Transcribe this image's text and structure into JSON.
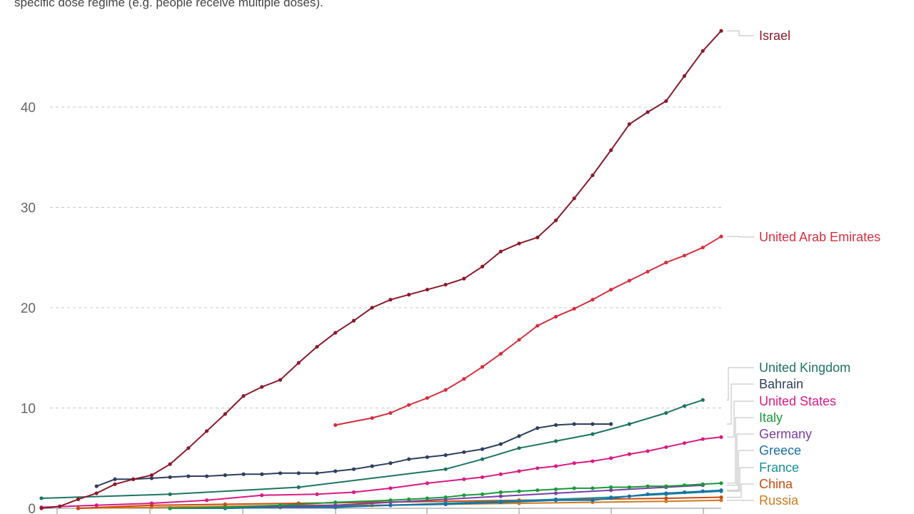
{
  "subtitle": "specific dose regime (e.g. people receive multiple doses).",
  "chart_data": {
    "type": "line",
    "title": "",
    "xlabel": "",
    "ylabel": "",
    "ylim": [
      0,
      48
    ],
    "yticks": [
      0,
      10,
      20,
      30,
      40
    ],
    "grid": true,
    "legend": "right",
    "x_range": [
      0,
      37
    ],
    "series": [
      {
        "name": "Israel",
        "color": "#8b1a2b",
        "x": [
          0,
          1,
          2,
          3,
          4,
          5,
          6,
          7,
          8,
          9,
          10,
          11,
          12,
          13,
          14,
          15,
          16,
          17,
          18,
          19,
          20,
          21,
          22,
          23,
          24,
          25,
          26,
          27,
          28,
          29,
          30,
          31,
          32,
          33,
          34,
          35,
          36,
          37
        ],
        "values": [
          0,
          0.2,
          0.9,
          1.5,
          2.4,
          2.9,
          3.3,
          4.4,
          6,
          7.7,
          9.4,
          11.2,
          12.1,
          12.8,
          14.5,
          16.1,
          17.5,
          18.7,
          20,
          20.8,
          21.3,
          21.8,
          22.3,
          22.9,
          24.1,
          25.6,
          26.4,
          27,
          28.7,
          30.9,
          33.2,
          35.7,
          38.3,
          39.5,
          40.6,
          43.1,
          45.6,
          47.6
        ]
      },
      {
        "name": "United Arab Emirates",
        "color": "#d6303f",
        "x": [
          16,
          18,
          19,
          20,
          21,
          22,
          23,
          24,
          25,
          26,
          27,
          28,
          29,
          30,
          31,
          32,
          33,
          34,
          35,
          36,
          37
        ],
        "values": [
          8.3,
          9,
          9.5,
          10.3,
          11,
          11.8,
          12.9,
          14.1,
          15.4,
          16.8,
          18.2,
          19.1,
          19.9,
          20.8,
          21.8,
          22.7,
          23.6,
          24.5,
          25.2,
          26,
          27.1
        ]
      },
      {
        "name": "United Kingdom",
        "color": "#1e7461",
        "x": [
          0,
          7,
          14,
          22,
          24,
          26,
          28,
          30,
          32,
          34,
          35,
          36
        ],
        "values": [
          1,
          1.4,
          2.1,
          3.9,
          4.9,
          6,
          6.7,
          7.4,
          8.4,
          9.5,
          10.2,
          10.8
        ]
      },
      {
        "name": "Bahrain",
        "color": "#2f3e5e",
        "x": [
          3,
          4,
          5,
          6,
          7,
          8,
          9,
          10,
          11,
          12,
          13,
          14,
          15,
          16,
          17,
          18,
          19,
          20,
          21,
          22,
          23,
          24,
          25,
          26,
          27,
          28,
          29,
          30,
          31
        ],
        "values": [
          2.2,
          2.9,
          2.9,
          3,
          3.1,
          3.2,
          3.2,
          3.3,
          3.4,
          3.4,
          3.5,
          3.5,
          3.5,
          3.7,
          3.9,
          4.2,
          4.5,
          4.9,
          5.1,
          5.3,
          5.6,
          5.9,
          6.4,
          7.2,
          8,
          8.3,
          8.4,
          8.4,
          8.4
        ]
      },
      {
        "name": "United States",
        "color": "#d91a84",
        "x": [
          0,
          3,
          6,
          9,
          12,
          15,
          17,
          19,
          21,
          23,
          24,
          25,
          26,
          27,
          28,
          29,
          30,
          31,
          32,
          33,
          34,
          35,
          36,
          37
        ],
        "values": [
          0.1,
          0.3,
          0.5,
          0.8,
          1.3,
          1.4,
          1.6,
          2,
          2.5,
          2.9,
          3.1,
          3.4,
          3.7,
          4,
          4.2,
          4.5,
          4.7,
          5,
          5.4,
          5.7,
          6.1,
          6.5,
          6.9,
          7.1
        ]
      },
      {
        "name": "Italy",
        "color": "#189a3b",
        "x": [
          7,
          10,
          13,
          16,
          19,
          20,
          21,
          22,
          23,
          24,
          25,
          26,
          27,
          28,
          29,
          30,
          31,
          32,
          33,
          34,
          35,
          36,
          37
        ],
        "values": [
          0,
          0.1,
          0.3,
          0.6,
          0.8,
          0.9,
          1,
          1.1,
          1.3,
          1.4,
          1.6,
          1.7,
          1.8,
          1.9,
          2,
          2,
          2.1,
          2.1,
          2.2,
          2.2,
          2.3,
          2.4,
          2.5
        ]
      },
      {
        "name": "Germany",
        "color": "#7a3ea5",
        "x": [
          7,
          10,
          13,
          16,
          19,
          22,
          25,
          28,
          31,
          34,
          36
        ],
        "values": [
          0,
          0.1,
          0.2,
          0.3,
          0.6,
          0.9,
          1.2,
          1.5,
          1.8,
          2.1,
          2.3
        ]
      },
      {
        "name": "Greece",
        "color": "#1a6fa8",
        "x": [
          7,
          10,
          13,
          16,
          19,
          22,
          25,
          28,
          30,
          31,
          32,
          33,
          34,
          35,
          36,
          37
        ],
        "values": [
          0,
          0,
          0.1,
          0.1,
          0.3,
          0.4,
          0.6,
          0.8,
          0.8,
          1,
          1.2,
          1.4,
          1.5,
          1.6,
          1.7,
          1.8
        ]
      },
      {
        "name": "France",
        "color": "#16909a",
        "x": [
          7,
          10,
          13,
          16,
          19,
          22,
          25,
          28,
          31,
          34,
          37
        ],
        "values": [
          0,
          0,
          0.1,
          0.2,
          0.3,
          0.5,
          0.7,
          0.9,
          1.1,
          1.4,
          1.7
        ]
      },
      {
        "name": "China",
        "color": "#c84b10",
        "x": [
          2,
          6,
          10,
          14,
          18,
          22,
          26,
          30,
          34,
          37
        ],
        "values": [
          0,
          0.3,
          0.4,
          0.5,
          0.6,
          0.7,
          0.8,
          0.9,
          1,
          1.1
        ]
      },
      {
        "name": "Russia",
        "color": "#d07a1e",
        "x": [
          2,
          6,
          10,
          14,
          18,
          22,
          26,
          30,
          34,
          37
        ],
        "values": [
          0,
          0.1,
          0.2,
          0.3,
          0.3,
          0.4,
          0.5,
          0.6,
          0.7,
          0.8
        ]
      }
    ]
  }
}
